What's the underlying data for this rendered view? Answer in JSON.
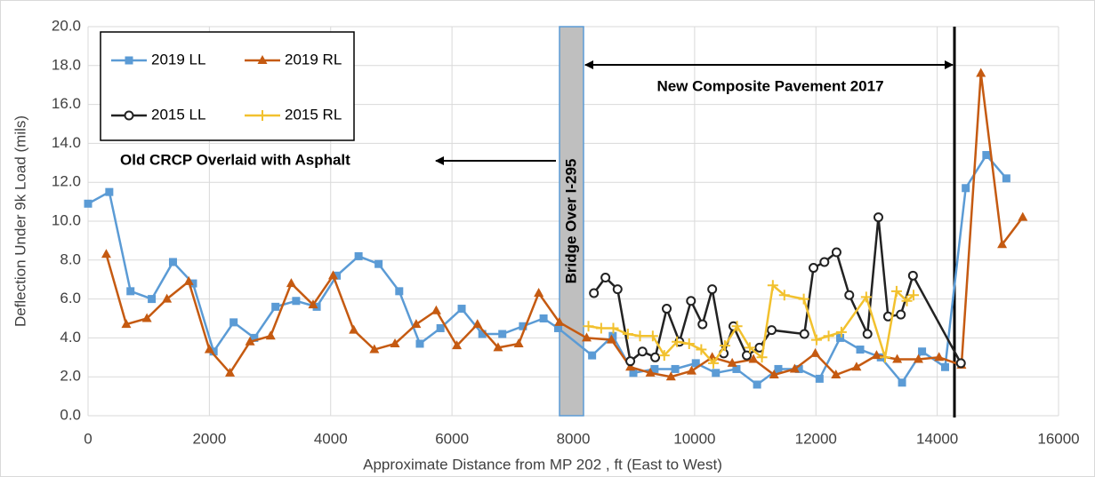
{
  "chart_data": {
    "type": "line",
    "x_label": "Approximate Distance from MP 202 , ft (East to West)",
    "y_label": "Deflection Under 9k Load (mils)",
    "xlim": [
      0,
      16000
    ],
    "xticks": [
      0,
      2000,
      4000,
      6000,
      8000,
      10000,
      12000,
      14000,
      16000
    ],
    "ylim": [
      0,
      20
    ],
    "yticks": [
      {
        "value": 0,
        "label": "0.0"
      },
      {
        "value": 2,
        "label": "2.0"
      },
      {
        "value": 4,
        "label": "4.0"
      },
      {
        "value": 6,
        "label": "6.0"
      },
      {
        "value": 8,
        "label": "8.0"
      },
      {
        "value": 10,
        "label": "10.0"
      },
      {
        "value": 12,
        "label": "12.0"
      },
      {
        "value": 14,
        "label": "14.0"
      },
      {
        "value": 16,
        "label": "16.0"
      },
      {
        "value": 18,
        "label": "18.0"
      },
      {
        "value": 20,
        "label": "20.0"
      }
    ],
    "grid": true,
    "annotations": [
      "Bridge Over I-295",
      "New Composite Pavement 2017",
      "Old CRCP Overlaid with Asphalt"
    ],
    "series": [
      {
        "name": "2019 LL",
        "color": "#5b9bd5",
        "marker": "square",
        "x": [
          0,
          350,
          700,
          1050,
          1400,
          1730,
          2070,
          2400,
          2740,
          3090,
          3430,
          3770,
          4100,
          4460,
          4790,
          5130,
          5470,
          5810,
          6160,
          6500,
          6830,
          7170,
          7510,
          7750,
          8310,
          8650,
          8990,
          9340,
          9680,
          10020,
          10350,
          10690,
          11030,
          11380,
          11720,
          12060,
          12400,
          12730,
          13070,
          13420,
          13750,
          14130,
          14470,
          14810,
          15140
        ],
        "values": [
          10.9,
          11.5,
          6.4,
          6.0,
          7.9,
          6.8,
          3.3,
          4.8,
          4.0,
          5.6,
          5.9,
          5.6,
          7.2,
          8.2,
          7.8,
          6.4,
          3.7,
          4.5,
          5.5,
          4.2,
          4.2,
          4.6,
          5.0,
          4.5,
          3.1,
          4.1,
          2.2,
          2.4,
          2.4,
          2.7,
          2.2,
          2.4,
          1.6,
          2.4,
          2.4,
          1.9,
          4.0,
          3.4,
          3.0,
          1.7,
          3.3,
          2.5,
          11.7,
          13.4,
          12.2
        ]
      },
      {
        "name": "2019 RL",
        "color": "#c55a11",
        "marker": "triangle",
        "x": [
          300,
          630,
          970,
          1300,
          1660,
          2000,
          2340,
          2670,
          3010,
          3350,
          3710,
          4040,
          4380,
          4720,
          5060,
          5410,
          5740,
          6080,
          6420,
          6760,
          7100,
          7430,
          7770,
          8220,
          8630,
          8940,
          9270,
          9610,
          9950,
          10290,
          10620,
          10970,
          11310,
          11650,
          11990,
          12330,
          12670,
          13000,
          13340,
          13690,
          14030,
          14400,
          14720,
          15070,
          15410
        ],
        "values": [
          8.3,
          4.7,
          5.0,
          6.0,
          6.9,
          3.4,
          2.2,
          3.8,
          4.1,
          6.8,
          5.7,
          7.2,
          4.4,
          3.4,
          3.7,
          4.7,
          5.4,
          3.6,
          4.7,
          3.5,
          3.7,
          6.3,
          4.8,
          4.0,
          3.9,
          2.5,
          2.2,
          2.0,
          2.3,
          3.0,
          2.7,
          2.9,
          2.1,
          2.4,
          3.2,
          2.1,
          2.5,
          3.1,
          2.9,
          2.9,
          3.0,
          2.6,
          17.6,
          8.8,
          10.2
        ]
      },
      {
        "name": "2015 LL",
        "color": "#222222",
        "marker": "circle",
        "x": [
          8340,
          8530,
          8730,
          8940,
          9140,
          9350,
          9540,
          9750,
          9940,
          10130,
          10290,
          10480,
          10640,
          10860,
          11070,
          11270,
          11810,
          11960,
          12140,
          12340,
          12550,
          12850,
          13030,
          13190,
          13400,
          13600,
          14390
        ],
        "values": [
          6.3,
          7.1,
          6.5,
          2.8,
          3.3,
          3.0,
          5.5,
          3.8,
          5.9,
          4.7,
          6.5,
          3.2,
          4.6,
          3.1,
          3.5,
          4.4,
          4.2,
          7.6,
          7.9,
          8.4,
          6.2,
          4.2,
          10.2,
          5.1,
          5.2,
          7.2,
          2.7
        ]
      },
      {
        "name": "2015 RL",
        "color": "#f2c12e",
        "marker": "plus",
        "x": [
          8250,
          8460,
          8660,
          8900,
          9100,
          9310,
          9500,
          9710,
          9910,
          10110,
          10310,
          10500,
          10700,
          10910,
          11110,
          11290,
          11480,
          11800,
          12010,
          12210,
          12420,
          12830,
          13140,
          13330,
          13500,
          13610
        ],
        "values": [
          4.6,
          4.5,
          4.5,
          4.2,
          4.1,
          4.1,
          3.1,
          3.8,
          3.7,
          3.4,
          2.7,
          3.6,
          4.6,
          3.5,
          3.0,
          6.7,
          6.2,
          6.0,
          3.9,
          4.1,
          4.3,
          6.1,
          3.0,
          6.4,
          5.9,
          6.2
        ]
      }
    ]
  }
}
